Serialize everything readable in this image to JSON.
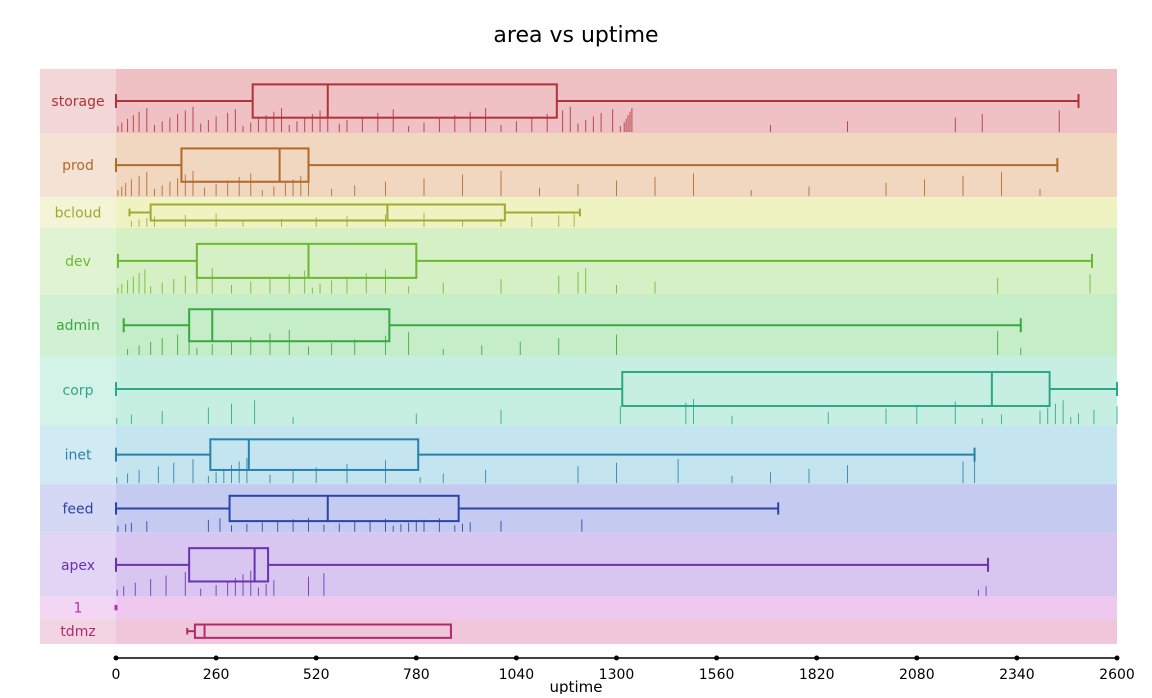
{
  "chart_data": {
    "type": "boxplot",
    "title": "area vs uptime",
    "xlabel": "uptime",
    "ylabel": "",
    "xlim": [
      0,
      2600
    ],
    "xticks": [
      0,
      260,
      520,
      780,
      1040,
      1300,
      1560,
      1820,
      2080,
      2340,
      2600
    ],
    "xtick_labels": [
      "0",
      "260",
      "520",
      "780",
      "1040",
      "1300",
      "1560",
      "1820",
      "2080",
      "2340",
      "2600"
    ],
    "grid": false,
    "legend": "none",
    "categories": [
      "storage",
      "prod",
      "bcloud",
      "dev",
      "admin",
      "corp",
      "inet",
      "feed",
      "apex",
      "1",
      "tdmz"
    ],
    "series": [
      {
        "name": "storage",
        "color": "#b2323a",
        "band": "#efc1c4",
        "label_band": "#f3d6d8",
        "rel_height": 1.25,
        "min": 0,
        "q1": 355,
        "median": 550,
        "q3": 1145,
        "max": 2500,
        "ticks": [
          5,
          15,
          30,
          45,
          60,
          80,
          100,
          120,
          140,
          160,
          180,
          200,
          220,
          240,
          260,
          290,
          310,
          330,
          350,
          370,
          390,
          410,
          430,
          450,
          470,
          490,
          510,
          530,
          550,
          580,
          600,
          640,
          680,
          720,
          760,
          800,
          840,
          880,
          920,
          960,
          1000,
          1040,
          1080,
          1120,
          1160,
          1180,
          1200,
          1220,
          1240,
          1260,
          1290,
          1310,
          1320,
          1325,
          1330,
          1335,
          1340,
          1700,
          1900,
          2180,
          2250,
          2450
        ]
      },
      {
        "name": "prod",
        "color": "#b06a2a",
        "band": "#f1d6c0",
        "label_band": "#f4e2d4",
        "rel_height": 1.25,
        "min": 0,
        "q1": 170,
        "median": 425,
        "q3": 500,
        "max": 2445,
        "ticks": [
          5,
          15,
          25,
          40,
          60,
          80,
          100,
          120,
          140,
          160,
          180,
          200,
          230,
          260,
          290,
          320,
          350,
          380,
          410,
          440,
          460,
          480,
          500,
          560,
          620,
          700,
          800,
          900,
          1000,
          1100,
          1200,
          1300,
          1400,
          1500,
          1650,
          1800,
          2000,
          2100,
          2200,
          2300,
          2400
        ]
      },
      {
        "name": "bcloud",
        "color": "#a2a832",
        "band": "#eff3c2",
        "label_band": "#f3f5d6",
        "rel_height": 0.6,
        "min": 35,
        "q1": 90,
        "median": 705,
        "q3": 1010,
        "max": 1205,
        "ticks": [
          40,
          60,
          80,
          100,
          180,
          260,
          330,
          430,
          520,
          600,
          700,
          800,
          900,
          1000,
          1080,
          1150,
          1190
        ]
      },
      {
        "name": "dev",
        "color": "#6cb832",
        "band": "#d4f0c4",
        "label_band": "#e0f4d4",
        "rel_height": 1.3,
        "min": 5,
        "q1": 210,
        "median": 500,
        "q3": 780,
        "max": 2535,
        "ticks": [
          5,
          15,
          30,
          45,
          60,
          75,
          90,
          120,
          150,
          180,
          210,
          250,
          300,
          350,
          400,
          450,
          490,
          510,
          530,
          560,
          600,
          650,
          700,
          760,
          850,
          1000,
          1150,
          1200,
          1220,
          1300,
          1400,
          2290,
          2530
        ]
      },
      {
        "name": "admin",
        "color": "#3aa840",
        "band": "#c4edc8",
        "label_band": "#d2f1d4",
        "rel_height": 1.2,
        "min": 20,
        "q1": 190,
        "median": 250,
        "q3": 710,
        "max": 2350,
        "ticks": [
          30,
          60,
          90,
          120,
          160,
          190,
          210,
          250,
          300,
          350,
          400,
          450,
          500,
          560,
          620,
          700,
          760,
          850,
          950,
          1050,
          1150,
          1300,
          2290,
          2350
        ]
      },
      {
        "name": "corp",
        "color": "#2aa882",
        "band": "#c6efe2",
        "label_band": "#d4f3e8",
        "rel_height": 1.35,
        "min": 0,
        "q1": 1315,
        "median": 2275,
        "q3": 2425,
        "max": 2600,
        "ticks": [
          2,
          40,
          120,
          240,
          300,
          360,
          460,
          780,
          1000,
          1310,
          1480,
          1500,
          1600,
          1850,
          2000,
          2080,
          2180,
          2250,
          2300,
          2400,
          2420,
          2440,
          2460,
          2480,
          2500,
          2540,
          2600
        ]
      },
      {
        "name": "inet",
        "color": "#2a82a8",
        "band": "#c4e4f0",
        "label_band": "#d2eaf4",
        "rel_height": 1.15,
        "min": 0,
        "q1": 245,
        "median": 345,
        "q3": 785,
        "max": 2230,
        "ticks": [
          2,
          30,
          60,
          110,
          150,
          200,
          240,
          260,
          280,
          300,
          320,
          340,
          400,
          460,
          520,
          600,
          700,
          790,
          850,
          960,
          1200,
          1300,
          1460,
          1600,
          1700,
          1800,
          1900,
          2200,
          2230
        ]
      },
      {
        "name": "feed",
        "color": "#2a44a8",
        "band": "#c4caf0",
        "label_band": "#d4d8f4",
        "rel_height": 0.95,
        "min": 0,
        "q1": 295,
        "median": 550,
        "q3": 890,
        "max": 1720,
        "ticks": [
          5,
          25,
          40,
          80,
          240,
          270,
          300,
          340,
          380,
          420,
          460,
          500,
          540,
          580,
          620,
          660,
          700,
          720,
          740,
          760,
          780,
          800,
          840,
          880,
          900,
          920,
          1000,
          1210
        ]
      },
      {
        "name": "apex",
        "color": "#6a32b0",
        "band": "#d8c6f0",
        "label_band": "#e2d4f4",
        "rel_height": 1.25,
        "min": 0,
        "q1": 190,
        "median": 360,
        "q3": 395,
        "max": 2265,
        "ticks": [
          3,
          20,
          50,
          90,
          130,
          180,
          220,
          260,
          290,
          310,
          330,
          350,
          370,
          390,
          410,
          500,
          540,
          2240,
          2260
        ]
      },
      {
        "name": "1",
        "color": "#b032b0",
        "band": "#efc8f0",
        "label_band": "#f3d6f4",
        "rel_height": 0.42,
        "min": 0,
        "q1": 0,
        "median": 0,
        "q3": 0,
        "max": 0,
        "ticks": []
      },
      {
        "name": "tdmz",
        "color": "#b02a70",
        "band": "#efc6da",
        "label_band": "#f3d4e2",
        "rel_height": 0.5,
        "min": 185,
        "q1": 205,
        "median": 230,
        "q3": 870,
        "max": 870,
        "ticks": []
      }
    ]
  }
}
